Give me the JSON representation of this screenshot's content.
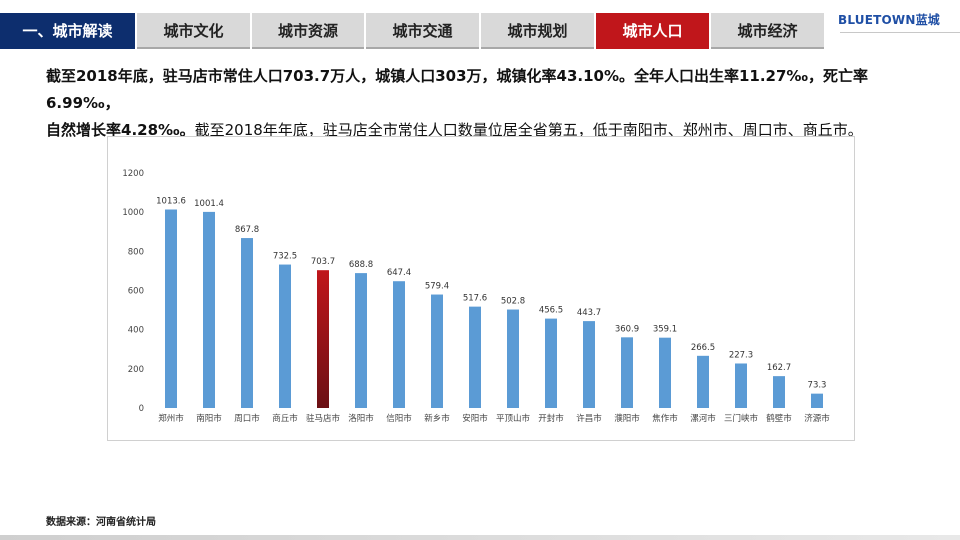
{
  "nav": {
    "tabs": [
      {
        "label": "一、城市解读"
      },
      {
        "label": "城市文化"
      },
      {
        "label": "城市资源"
      },
      {
        "label": "城市交通"
      },
      {
        "label": "城市规划"
      },
      {
        "label": "城市人口"
      },
      {
        "label": "城市经济"
      }
    ],
    "active_index": 5,
    "logo": "BLUETOWN蓝城"
  },
  "summary": {
    "line1": "截至2018年底，驻马店市常住人口703.7万人，城镇人口303万，城镇化率43.10%。全年人口出生率11.27‰，死亡率6.99‰，",
    "line2_bold": "自然增长率4.28‰。",
    "line2_rest": "截至2018年年底，驻马店全市常住人口数量位居全省第五，低于南阳市、郑州市、周口市、商丘市。"
  },
  "source": "数据来源：河南省统计局",
  "colors": {
    "bar": "#5b9bd5",
    "highlight_top": "#c0161b",
    "highlight_bottom": "#6b1014",
    "nav_first": "#0d2e6e",
    "nav_active": "#c0161b"
  },
  "chart_data": {
    "type": "bar",
    "categories": [
      "郑州市",
      "南阳市",
      "周口市",
      "商丘市",
      "驻马店市",
      "洛阳市",
      "信阳市",
      "新乡市",
      "安阳市",
      "平顶山市",
      "开封市",
      "许昌市",
      "濮阳市",
      "焦作市",
      "漯河市",
      "三门峡市",
      "鹤壁市",
      "济源市"
    ],
    "values": [
      1013.6,
      1001.4,
      867.8,
      732.5,
      703.7,
      688.8,
      647.4,
      579.4,
      517.6,
      502.8,
      456.5,
      443.7,
      360.9,
      359.1,
      266.5,
      227.3,
      162.7,
      73.3
    ],
    "highlight_category": "驻马店市",
    "ylim": [
      0,
      1200
    ],
    "yticks": [
      0,
      200,
      400,
      600,
      800,
      1000,
      1200
    ],
    "grid": false,
    "legend": "none"
  }
}
